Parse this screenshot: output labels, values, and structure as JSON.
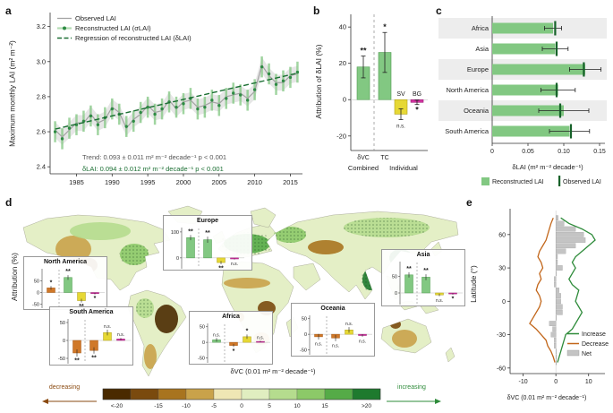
{
  "panels": {
    "a": {
      "letter": "a",
      "ylabel": "Maximum monthly LAI (m² m⁻²)",
      "yticks": [
        2.4,
        2.6,
        2.8,
        3.0,
        3.2
      ],
      "xticks": [
        1985,
        1990,
        1995,
        2000,
        2005,
        2010,
        2015
      ],
      "legend": [
        "Observed LAI",
        "Reconstructed LAI (σLAI)",
        "Regression of reconstructed LAI (δLAI)"
      ],
      "trend_line1": "Trend: 0.093 ± 0.011 m² m⁻² decade⁻¹  p < 0.001",
      "trend_line2": "δLAI: 0.094 ± 0.012 m² m⁻² decade⁻¹  p < 0.001"
    },
    "b": {
      "letter": "b",
      "ylabel": "Attribution of δLAI (%)",
      "yticks": [
        -20,
        0,
        20,
        40
      ],
      "group_labels": [
        "Combined",
        "Individual"
      ]
    },
    "c": {
      "letter": "c",
      "xlabel": "δLAI (m² m⁻² decade⁻¹)",
      "xticks": [
        0,
        0.05,
        0.1,
        0.15
      ],
      "legend": [
        "Reconstructed LAI",
        "Observed LAI"
      ]
    },
    "d": {
      "letter": "d",
      "ylabel": "Attribution (%)",
      "colorbar_title": "δVC (0.01 m² m⁻² decade⁻¹)",
      "decreasing_label": "decreasing",
      "increasing_label": "increasing"
    },
    "e": {
      "letter": "e",
      "ylabel": "Latitude (°)",
      "xlabel": "δVC (0.01 m² m⁻² decade⁻¹)",
      "yticks": [
        -60,
        -30,
        0,
        30,
        60
      ],
      "xticks": [
        -10,
        0,
        10
      ],
      "legend": [
        "Increase",
        "Decrease",
        "Net"
      ]
    }
  },
  "colors": {
    "green": "#82c882",
    "dark_green": "#1b6f33",
    "gray_line": "#a3a3a3",
    "yellow": "#e6d835",
    "magenta": "#d234a0",
    "orange": "#d07828",
    "increase": "#2e8b3a",
    "decrease": "#c2661a",
    "net_gray": "#c4c4c4",
    "map_base": "#e4efc6",
    "band": "#ededed"
  },
  "chart_data": [
    {
      "panel": "a",
      "type": "line",
      "ylabel": "Maximum monthly LAI (m² m⁻²)",
      "ylim": [
        2.4,
        3.2
      ],
      "x_years": [
        1982,
        1983,
        1984,
        1985,
        1986,
        1987,
        1988,
        1989,
        1990,
        1991,
        1992,
        1993,
        1994,
        1995,
        1996,
        1997,
        1998,
        1999,
        2000,
        2001,
        2002,
        2003,
        2004,
        2005,
        2006,
        2007,
        2008,
        2009,
        2010,
        2011,
        2012,
        2013,
        2014,
        2015,
        2016
      ],
      "observed": [
        2.61,
        2.57,
        2.61,
        2.65,
        2.65,
        2.7,
        2.65,
        2.67,
        2.74,
        2.71,
        2.62,
        2.67,
        2.7,
        2.75,
        2.71,
        2.72,
        2.78,
        2.73,
        2.77,
        2.78,
        2.74,
        2.75,
        2.77,
        2.76,
        2.8,
        2.81,
        2.82,
        2.79,
        2.83,
        2.98,
        2.92,
        2.88,
        2.88,
        2.92,
        2.93
      ],
      "reconstructed": [
        2.6,
        2.56,
        2.62,
        2.64,
        2.66,
        2.69,
        2.64,
        2.68,
        2.73,
        2.7,
        2.63,
        2.66,
        2.71,
        2.74,
        2.7,
        2.73,
        2.77,
        2.74,
        2.76,
        2.79,
        2.73,
        2.74,
        2.78,
        2.75,
        2.79,
        2.82,
        2.81,
        2.78,
        2.84,
        2.97,
        2.93,
        2.87,
        2.89,
        2.91,
        2.94
      ],
      "error": 0.06,
      "regression": {
        "start_year": 1982,
        "intercept": 2.615,
        "slope_per_year": 0.0094
      },
      "trend_observed": "0.093 ± 0.011 m² m⁻² decade⁻¹, p < 0.001",
      "trend_reconstructed": "0.094 ± 0.012 m² m⁻² decade⁻¹, p < 0.001"
    },
    {
      "panel": "b",
      "type": "bar",
      "ylabel": "Attribution of δLAI (%)",
      "ylim": [
        -28,
        46
      ],
      "categories": [
        "δVC",
        "TC",
        "SV",
        "BG"
      ],
      "values": [
        18,
        26,
        -8,
        -1.5
      ],
      "errors": [
        6,
        11,
        3,
        1.2
      ],
      "significance": [
        "**",
        "*",
        "n.s.",
        "*"
      ],
      "bar_colors": [
        "green",
        "green",
        "yellow",
        "magenta"
      ],
      "groups": {
        "Combined": [
          "δVC"
        ],
        "Individual": [
          "TC",
          "SV",
          "BG"
        ]
      }
    },
    {
      "panel": "c",
      "type": "bar-horizontal",
      "xlabel": "δLAI (m² m⁻² decade⁻¹)",
      "xlim": [
        0,
        0.155
      ],
      "categories": [
        "Africa",
        "Asia",
        "Europe",
        "North America",
        "Oceania",
        "South America"
      ],
      "reconstructed": [
        0.085,
        0.088,
        0.13,
        0.092,
        0.1,
        0.108
      ],
      "errors": [
        0.012,
        0.018,
        0.022,
        0.024,
        0.035,
        0.028
      ],
      "observed": [
        0.088,
        0.09,
        0.128,
        0.09,
        0.095,
        0.11
      ]
    },
    {
      "panel": "d",
      "type": "choropleth-map",
      "colorbar": {
        "labels": [
          "<-20",
          "-15",
          "-10",
          "-5",
          "0",
          "5",
          "10",
          "15",
          ">20"
        ],
        "colors": [
          "#4a2a00",
          "#7a4a0e",
          "#a8741f",
          "#c9a24a",
          "#efe6b4",
          "#e0eec0",
          "#b5dc8e",
          "#8cc968",
          "#55ab47",
          "#1e7a2e"
        ]
      },
      "insets": [
        {
          "region": "North America",
          "values": [
            20,
            65,
            -35,
            -5
          ],
          "errors": [
            8,
            10,
            8,
            3
          ],
          "significance": [
            "*",
            "**",
            "**",
            "*"
          ],
          "bar_colors": [
            "orange",
            "green",
            "yellow",
            "magenta"
          ],
          "ylim": [
            -60,
            95
          ],
          "yticks": [
            -50,
            0,
            50
          ]
        },
        {
          "region": "Europe",
          "values": [
            78,
            70,
            -18,
            -4
          ],
          "errors": [
            10,
            12,
            6,
            2
          ],
          "significance": [
            "**",
            "**",
            "**",
            "n.s."
          ],
          "bar_colors": [
            "green",
            "green",
            "yellow",
            "magenta"
          ],
          "ylim": [
            -35,
            110
          ],
          "yticks": [
            0,
            100
          ]
        },
        {
          "region": "Asia",
          "values": [
            55,
            48,
            -6,
            -3
          ],
          "errors": [
            8,
            9,
            4,
            2
          ],
          "significance": [
            "**",
            "**",
            "n.s.",
            "*"
          ],
          "bar_colors": [
            "green",
            "green",
            "yellow",
            "magenta"
          ],
          "ylim": [
            -30,
            90
          ],
          "yticks": [
            0,
            50
          ]
        },
        {
          "region": "South America",
          "values": [
            -35,
            -28,
            22,
            4
          ],
          "errors": [
            10,
            9,
            8,
            3
          ],
          "significance": [
            "**",
            "**",
            "n.s.",
            "n.s."
          ],
          "bar_colors": [
            "orange",
            "orange",
            "yellow",
            "magenta"
          ],
          "ylim": [
            -60,
            55
          ],
          "yticks": [
            -50,
            0,
            50
          ]
        },
        {
          "region": "Africa",
          "values": [
            8,
            -10,
            18,
            3
          ],
          "errors": [
            6,
            5,
            7,
            2
          ],
          "significance": [
            "n.s.",
            "*",
            "*",
            "n.s."
          ],
          "bar_colors": [
            "green",
            "orange",
            "yellow",
            "magenta"
          ],
          "ylim": [
            -60,
            55
          ],
          "yticks": [
            -50,
            0,
            50
          ]
        },
        {
          "region": "Oceania",
          "values": [
            -8,
            -12,
            14,
            -4
          ],
          "errors": [
            9,
            10,
            9,
            4
          ],
          "significance": [
            "n.s.",
            "n.s.",
            "n.s.",
            "n.s."
          ],
          "bar_colors": [
            "orange",
            "orange",
            "yellow",
            "magenta"
          ],
          "ylim": [
            -60,
            55
          ],
          "yticks": [
            -50,
            0,
            50
          ]
        }
      ]
    },
    {
      "panel": "e",
      "type": "line+bar",
      "xlabel": "δVC (0.01 m² m⁻² decade⁻¹)",
      "ylabel": "Latitude (°)",
      "xlim": [
        -14,
        15
      ],
      "latitudes": [
        -55,
        -50,
        -45,
        -40,
        -35,
        -30,
        -25,
        -20,
        -15,
        -10,
        -5,
        0,
        5,
        10,
        15,
        20,
        25,
        30,
        35,
        40,
        45,
        50,
        55,
        60,
        65,
        70,
        75
      ],
      "increase": [
        0.5,
        1,
        1.5,
        2,
        2.5,
        3,
        5,
        6,
        7,
        8,
        7,
        6,
        6.5,
        7,
        5,
        4,
        5,
        6,
        5,
        6,
        8,
        10,
        12,
        11,
        8,
        4,
        1.5
      ],
      "decrease": [
        -0.3,
        -0.8,
        -1.5,
        -2.5,
        -3,
        -4.5,
        -6,
        -8,
        -7,
        -6,
        -5,
        -4.5,
        -5,
        -6,
        -5.5,
        -4.5,
        -5,
        -4,
        -4.5,
        -5.5,
        -5,
        -4,
        -3,
        -2.5,
        -2,
        -1.5,
        -0.8
      ]
    }
  ]
}
